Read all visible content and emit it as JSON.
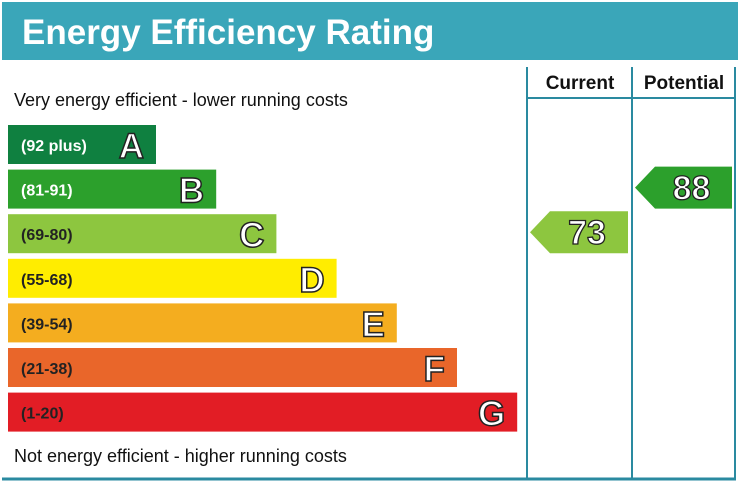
{
  "chart_data": {
    "type": "bar",
    "title": "Energy Efficiency Rating",
    "top_note": "Very energy efficient - lower running costs",
    "bottom_note": "Not energy efficient - higher running costs",
    "columns": [
      "Current",
      "Potential"
    ],
    "bands": [
      {
        "letter": "A",
        "range": "(92 plus)",
        "color": "#0f8040",
        "label_color": "#ffffff"
      },
      {
        "letter": "B",
        "range": "(81-91)",
        "color": "#2ca02c",
        "label_color": "#ffffff"
      },
      {
        "letter": "C",
        "range": "(69-80)",
        "color": "#8dc63f",
        "label_color": "#222222"
      },
      {
        "letter": "D",
        "range": "(55-68)",
        "color": "#ffed00",
        "label_color": "#222222"
      },
      {
        "letter": "E",
        "range": "(39-54)",
        "color": "#f4ad1f",
        "label_color": "#222222"
      },
      {
        "letter": "F",
        "range": "(21-38)",
        "color": "#e9662a",
        "label_color": "#222222"
      },
      {
        "letter": "G",
        "range": "(1-20)",
        "color": "#e21d25",
        "label_color": "#222222"
      }
    ],
    "current": {
      "value": "73",
      "band": "C",
      "color": "#8dc63f"
    },
    "potential": {
      "value": "88",
      "band": "B",
      "color": "#2ca02c"
    },
    "header_color": "#3aa6b9",
    "frame_color": "#2a8aa0"
  }
}
